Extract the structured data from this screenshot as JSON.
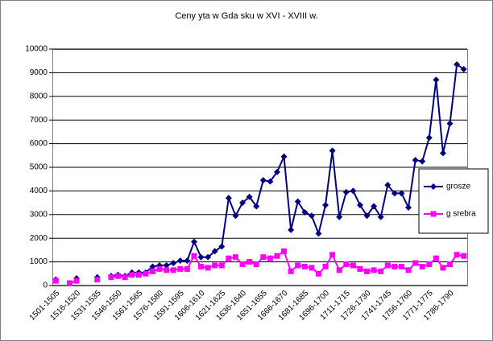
{
  "chart_data": {
    "type": "line",
    "title": "Ceny  yta w Gda sku w XVI - XVIII w.",
    "categories": [
      "1501-1505",
      null,
      null,
      "1516-1520",
      null,
      null,
      "1531-1535",
      null,
      null,
      "1546-1550",
      null,
      null,
      "1561-1565",
      null,
      null,
      "1576-1580",
      null,
      null,
      "1591-1595",
      null,
      null,
      "1606-1610",
      null,
      null,
      "1621-1625",
      null,
      null,
      "1636-1640",
      null,
      null,
      "1651-1655",
      null,
      null,
      "1666-1670",
      null,
      null,
      "1681-1685",
      null,
      null,
      "1696-1700",
      null,
      null,
      "1711-1715",
      null,
      null,
      "1726-1730",
      null,
      null,
      "1741-1745",
      null,
      null,
      "1756-1760",
      null,
      null,
      "1771-1775",
      null,
      null,
      "1786-1790",
      null,
      null
    ],
    "series": [
      {
        "name": "grosze",
        "color": "#000080",
        "marker": "diamond",
        "values": [
          250,
          null,
          null,
          300,
          null,
          null,
          350,
          null,
          400,
          450,
          400,
          550,
          550,
          550,
          800,
          850,
          850,
          950,
          1050,
          1050,
          1850,
          1200,
          1200,
          1450,
          1650,
          3700,
          2950,
          3500,
          3750,
          3350,
          4450,
          4400,
          4800,
          5450,
          2350,
          3550,
          3100,
          2950,
          2200,
          3400,
          5700,
          2900,
          3950,
          4000,
          3400,
          2950,
          3350,
          2900,
          4250,
          3900,
          3900,
          3300,
          5300,
          5250,
          6250,
          8700,
          5600,
          6850,
          9350,
          9150
        ]
      },
      {
        "name": "g srebra",
        "color": "#ff00ff",
        "marker": "square",
        "values": [
          200,
          null,
          100,
          200,
          null,
          null,
          250,
          null,
          350,
          400,
          350,
          450,
          450,
          500,
          600,
          700,
          650,
          650,
          700,
          700,
          1250,
          800,
          750,
          850,
          850,
          1150,
          1200,
          900,
          1000,
          900,
          1200,
          1150,
          1250,
          1450,
          600,
          850,
          800,
          750,
          500,
          800,
          1300,
          650,
          900,
          850,
          700,
          600,
          650,
          600,
          850,
          800,
          800,
          650,
          950,
          800,
          900,
          1150,
          750,
          900,
          1300,
          1250
        ]
      }
    ],
    "ylim": [
      0,
      10000
    ],
    "yticks": [
      0,
      1000,
      2000,
      3000,
      4000,
      5000,
      6000,
      7000,
      8000,
      9000,
      10000
    ],
    "grid": true,
    "legend": "right"
  }
}
